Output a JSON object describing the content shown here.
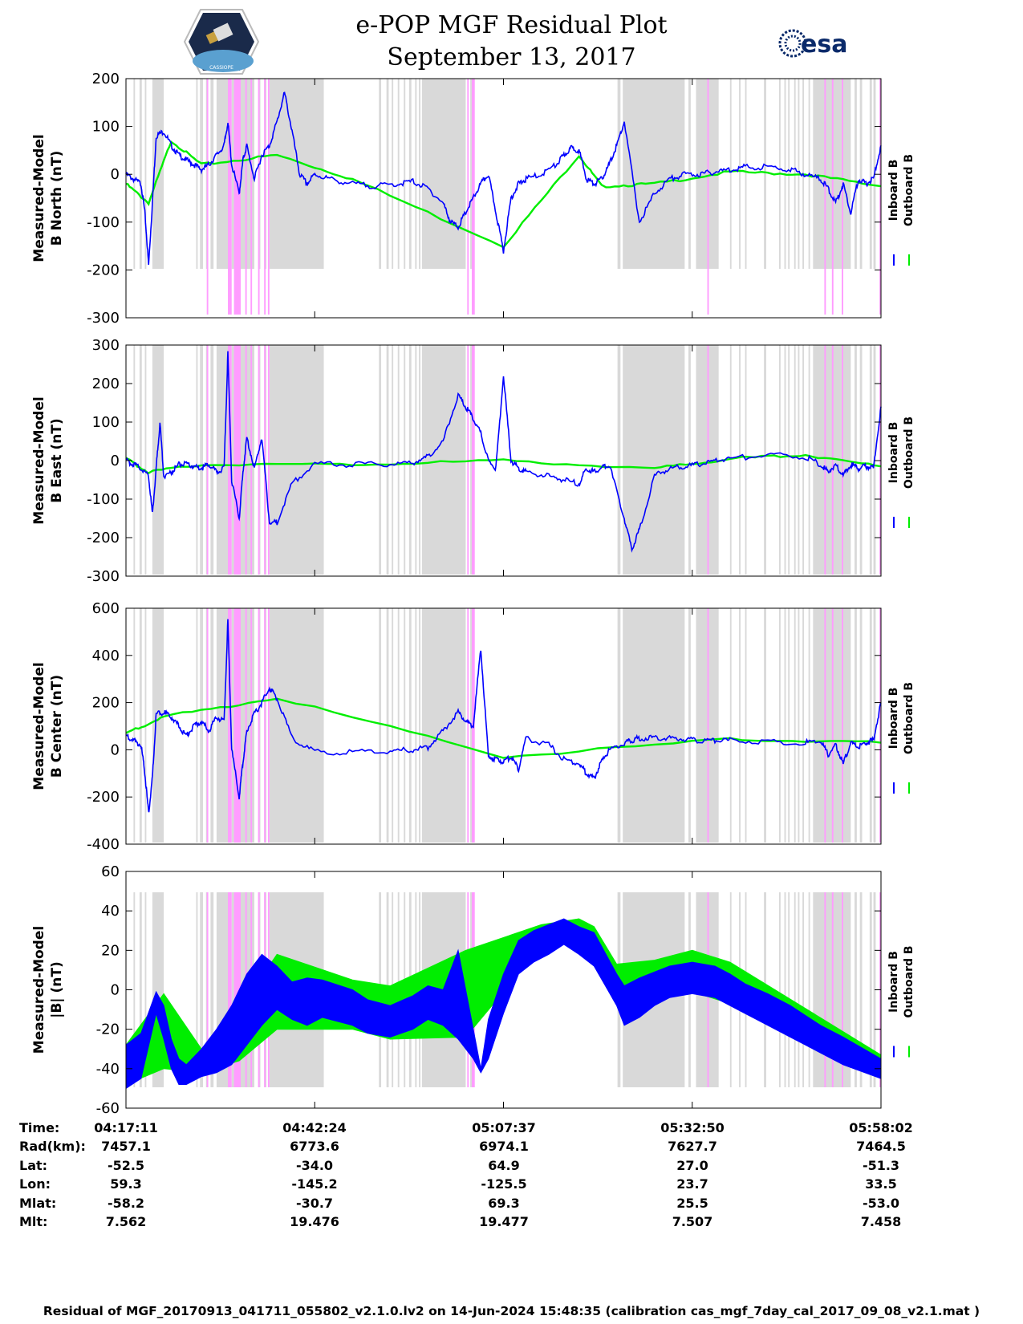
{
  "header": {
    "title_line1": "e-POP MGF Residual Plot",
    "title_line2": "September 13, 2017",
    "logo_left_text": "CASSIOPE",
    "logo_right_text": "esa"
  },
  "colors": {
    "inboard": "#0000ff",
    "outboard": "#00ee00",
    "gray_band": "#d9d9d9",
    "pink_band": "#ff9cff"
  },
  "legend": {
    "inboard": "Inboard B",
    "outboard": "Outboard B"
  },
  "chart_data": [
    {
      "type": "line",
      "ylabel": [
        "Measured-Model",
        "B North (nT)"
      ],
      "ylim": [
        -300,
        200
      ],
      "yticks": [
        200,
        100,
        0,
        -100,
        -200,
        -300
      ],
      "series": [
        {
          "name": "Inboard B",
          "x": [
            0,
            0.01,
            0.02,
            0.025,
            0.03,
            0.035,
            0.04,
            0.05,
            0.06,
            0.07,
            0.08,
            0.09,
            0.1,
            0.11,
            0.12,
            0.13,
            0.135,
            0.14,
            0.15,
            0.155,
            0.16,
            0.17,
            0.18,
            0.19,
            0.2,
            0.21,
            0.22,
            0.23,
            0.24,
            0.25,
            0.27,
            0.3,
            0.33,
            0.36,
            0.38,
            0.4,
            0.42,
            0.43,
            0.44,
            0.45,
            0.46,
            0.47,
            0.48,
            0.49,
            0.5,
            0.51,
            0.52,
            0.53,
            0.55,
            0.57,
            0.58,
            0.59,
            0.6,
            0.61,
            0.62,
            0.63,
            0.64,
            0.65,
            0.66,
            0.68,
            0.7,
            0.72,
            0.74,
            0.76,
            0.78,
            0.8,
            0.82,
            0.85,
            0.88,
            0.9,
            0.92,
            0.93,
            0.94,
            0.95,
            0.96,
            0.97,
            0.98,
            0.99,
            1.0
          ],
          "values": [
            0,
            -10,
            -20,
            -80,
            -190,
            -60,
            80,
            90,
            60,
            40,
            30,
            20,
            10,
            20,
            40,
            60,
            110,
            20,
            -40,
            30,
            60,
            -10,
            40,
            60,
            110,
            170,
            90,
            0,
            -20,
            0,
            -10,
            -20,
            -25,
            -20,
            -15,
            -30,
            -60,
            -100,
            -110,
            -80,
            -50,
            -20,
            0,
            -80,
            -160,
            -50,
            -20,
            -10,
            0,
            20,
            40,
            55,
            50,
            -10,
            -20,
            -10,
            20,
            60,
            110,
            -100,
            -40,
            -10,
            0,
            0,
            5,
            10,
            15,
            15,
            10,
            0,
            -10,
            -30,
            -60,
            -20,
            -80,
            -10,
            -20,
            -10,
            60
          ]
        },
        {
          "name": "Outboard B",
          "x": [
            0,
            0.03,
            0.06,
            0.1,
            0.2,
            0.3,
            0.5,
            0.6,
            0.63,
            0.7,
            0.8,
            0.9,
            1.0
          ],
          "values": [
            -20,
            -60,
            70,
            20,
            40,
            -10,
            -150,
            40,
            -25,
            -20,
            5,
            0,
            -25
          ]
        }
      ]
    },
    {
      "type": "line",
      "ylabel": [
        "Measured-Model",
        "B East (nT)"
      ],
      "ylim": [
        -300,
        300
      ],
      "yticks": [
        300,
        200,
        100,
        0,
        -100,
        -200,
        -300
      ],
      "series": [
        {
          "name": "Inboard B",
          "x": [
            0,
            0.01,
            0.02,
            0.03,
            0.035,
            0.04,
            0.045,
            0.05,
            0.06,
            0.07,
            0.08,
            0.09,
            0.1,
            0.11,
            0.12,
            0.13,
            0.135,
            0.14,
            0.15,
            0.155,
            0.16,
            0.17,
            0.18,
            0.19,
            0.2,
            0.22,
            0.25,
            0.3,
            0.35,
            0.38,
            0.4,
            0.42,
            0.44,
            0.45,
            0.46,
            0.47,
            0.48,
            0.49,
            0.5,
            0.51,
            0.52,
            0.53,
            0.56,
            0.58,
            0.6,
            0.61,
            0.62,
            0.63,
            0.64,
            0.66,
            0.67,
            0.68,
            0.7,
            0.72,
            0.74,
            0.76,
            0.78,
            0.8,
            0.85,
            0.9,
            0.92,
            0.93,
            0.94,
            0.95,
            0.96,
            0.97,
            0.98,
            0.99,
            1.0
          ],
          "values": [
            0,
            -10,
            -20,
            -40,
            -140,
            -20,
            100,
            -40,
            -30,
            -10,
            -10,
            -15,
            -20,
            -10,
            -30,
            -20,
            280,
            -50,
            -150,
            -30,
            60,
            -20,
            60,
            -160,
            -160,
            -60,
            -10,
            -10,
            -10,
            -5,
            10,
            50,
            170,
            140,
            110,
            70,
            0,
            -20,
            220,
            0,
            -20,
            -30,
            -40,
            -50,
            -60,
            -20,
            -30,
            -20,
            -10,
            -150,
            -230,
            -180,
            -40,
            -20,
            -15,
            -10,
            0,
            5,
            15,
            10,
            -10,
            -30,
            -10,
            -40,
            -10,
            -20,
            -15,
            -20,
            140
          ]
        },
        {
          "name": "Outboard B",
          "x": [
            0,
            0.03,
            0.1,
            0.3,
            0.5,
            0.7,
            0.8,
            0.9,
            1.0
          ],
          "values": [
            5,
            -30,
            -10,
            -10,
            0,
            -20,
            5,
            15,
            -15
          ]
        }
      ]
    },
    {
      "type": "line",
      "ylabel": [
        "Measured-Model",
        "B Center (nT)"
      ],
      "ylim": [
        -400,
        600
      ],
      "yticks": [
        600,
        400,
        200,
        0,
        -200,
        -400
      ],
      "series": [
        {
          "name": "Inboard B",
          "x": [
            0,
            0.01,
            0.02,
            0.025,
            0.03,
            0.035,
            0.04,
            0.05,
            0.06,
            0.07,
            0.08,
            0.09,
            0.1,
            0.11,
            0.12,
            0.13,
            0.135,
            0.14,
            0.15,
            0.155,
            0.16,
            0.17,
            0.18,
            0.19,
            0.2,
            0.22,
            0.25,
            0.3,
            0.35,
            0.38,
            0.4,
            0.42,
            0.44,
            0.45,
            0.46,
            0.47,
            0.48,
            0.49,
            0.5,
            0.51,
            0.52,
            0.53,
            0.56,
            0.58,
            0.6,
            0.61,
            0.62,
            0.63,
            0.64,
            0.66,
            0.67,
            0.68,
            0.7,
            0.72,
            0.74,
            0.76,
            0.78,
            0.8,
            0.85,
            0.9,
            0.92,
            0.93,
            0.94,
            0.95,
            0.96,
            0.97,
            0.98,
            0.99,
            1.0
          ],
          "values": [
            60,
            40,
            20,
            -100,
            -270,
            -120,
            150,
            160,
            140,
            100,
            60,
            100,
            120,
            80,
            140,
            120,
            550,
            0,
            -200,
            -50,
            80,
            150,
            200,
            260,
            220,
            50,
            -10,
            -10,
            -5,
            0,
            10,
            80,
            160,
            120,
            100,
            430,
            -30,
            -40,
            -50,
            -30,
            -80,
            50,
            20,
            -40,
            -60,
            -100,
            -120,
            -50,
            0,
            30,
            40,
            50,
            50,
            50,
            45,
            40,
            40,
            40,
            35,
            30,
            40,
            -20,
            20,
            -60,
            30,
            10,
            30,
            40,
            200
          ]
        },
        {
          "name": "Outboard B",
          "x": [
            0,
            0.05,
            0.2,
            0.5,
            0.8,
            1.0
          ],
          "values": [
            70,
            140,
            220,
            -30,
            45,
            30
          ]
        }
      ]
    },
    {
      "type": "area",
      "ylabel": [
        "Measured-Model",
        "|B| (nT)"
      ],
      "ylim": [
        -60,
        60
      ],
      "yticks": [
        60,
        40,
        20,
        0,
        -20,
        -40,
        -60
      ],
      "series": [
        {
          "name": "Inboard B",
          "x": [
            0,
            0.02,
            0.04,
            0.05,
            0.06,
            0.07,
            0.08,
            0.1,
            0.12,
            0.14,
            0.16,
            0.18,
            0.2,
            0.22,
            0.24,
            0.26,
            0.3,
            0.32,
            0.35,
            0.38,
            0.4,
            0.42,
            0.44,
            0.46,
            0.47,
            0.48,
            0.5,
            0.52,
            0.54,
            0.56,
            0.58,
            0.6,
            0.62,
            0.65,
            0.66,
            0.68,
            0.7,
            0.72,
            0.75,
            0.78,
            0.8,
            0.82,
            0.85,
            0.88,
            0.9,
            0.92,
            0.95,
            1.0
          ],
          "upper": [
            -28,
            -22,
            -1,
            -8,
            -25,
            -35,
            -38,
            -30,
            -20,
            -8,
            8,
            18,
            12,
            4,
            6,
            5,
            0,
            -5,
            -8,
            -3,
            2,
            0,
            20,
            -20,
            -40,
            -15,
            8,
            25,
            30,
            33,
            36,
            32,
            29,
            8,
            2,
            6,
            9,
            12,
            14,
            12,
            8,
            3,
            -2,
            -8,
            -13,
            -18,
            -24,
            -35
          ],
          "lower": [
            -50,
            -45,
            -12,
            -25,
            -40,
            -48,
            -48,
            -44,
            -42,
            -38,
            -28,
            -18,
            -10,
            -15,
            -18,
            -14,
            -18,
            -22,
            -24,
            -20,
            -15,
            -18,
            -25,
            -35,
            -42,
            -35,
            -12,
            8,
            14,
            18,
            23,
            18,
            12,
            -8,
            -18,
            -14,
            -8,
            -4,
            -2,
            -4,
            -8,
            -12,
            -18,
            -24,
            -28,
            -32,
            -38,
            -45
          ]
        },
        {
          "name": "Outboard B",
          "x": [
            0,
            0.05,
            0.1,
            0.15,
            0.2,
            0.3,
            0.35,
            0.45,
            0.55,
            0.6,
            0.62,
            0.65,
            0.7,
            0.75,
            0.8,
            1.0
          ],
          "upper": [
            -28,
            -2,
            -30,
            -10,
            18,
            5,
            2,
            20,
            33,
            36,
            32,
            13,
            15,
            20,
            14,
            -33
          ],
          "lower": [
            -48,
            -40,
            -42,
            -36,
            -20,
            -20,
            -25,
            -24,
            22,
            25,
            22,
            -2,
            -4,
            -1,
            -7,
            -44
          ]
        }
      ]
    }
  ],
  "bands": {
    "gray": [
      [
        0.01,
        0.012
      ],
      [
        0.018,
        0.021
      ],
      [
        0.025,
        0.027
      ],
      [
        0.035,
        0.05
      ],
      [
        0.093,
        0.095
      ],
      [
        0.098,
        0.102
      ],
      [
        0.106,
        0.108
      ],
      [
        0.112,
        0.116
      ],
      [
        0.12,
        0.135
      ],
      [
        0.14,
        0.17
      ],
      [
        0.175,
        0.178
      ],
      [
        0.183,
        0.186
      ],
      [
        0.19,
        0.262
      ],
      [
        0.335,
        0.338
      ],
      [
        0.345,
        0.348
      ],
      [
        0.352,
        0.354
      ],
      [
        0.36,
        0.362
      ],
      [
        0.368,
        0.37
      ],
      [
        0.375,
        0.378
      ],
      [
        0.383,
        0.385
      ],
      [
        0.388,
        0.39
      ],
      [
        0.392,
        0.45
      ],
      [
        0.456,
        0.458
      ],
      [
        0.651,
        0.655
      ],
      [
        0.658,
        0.74
      ],
      [
        0.745,
        0.748
      ],
      [
        0.755,
        0.785
      ],
      [
        0.8,
        0.802
      ],
      [
        0.812,
        0.814
      ],
      [
        0.82,
        0.822
      ],
      [
        0.845,
        0.848
      ],
      [
        0.865,
        0.867
      ],
      [
        0.872,
        0.874
      ],
      [
        0.877,
        0.879
      ],
      [
        0.885,
        0.887
      ],
      [
        0.89,
        0.892
      ],
      [
        0.896,
        0.898
      ],
      [
        0.904,
        0.906
      ],
      [
        0.91,
        0.96
      ],
      [
        0.965,
        0.968
      ],
      [
        0.972,
        0.975
      ],
      [
        0.985,
        0.988
      ],
      [
        0.99,
        0.993
      ]
    ],
    "pink": [
      [
        0.107,
        0.109
      ],
      [
        0.135,
        0.14
      ],
      [
        0.143,
        0.152
      ],
      [
        0.158,
        0.16
      ],
      [
        0.165,
        0.167
      ],
      [
        0.175,
        0.177
      ],
      [
        0.183,
        0.185
      ],
      [
        0.188,
        0.19
      ],
      [
        0.452,
        0.454
      ],
      [
        0.458,
        0.462
      ],
      [
        0.77,
        0.772
      ],
      [
        0.925,
        0.927
      ],
      [
        0.935,
        0.937
      ],
      [
        0.948,
        0.95
      ],
      [
        0.998,
        1.0
      ]
    ]
  },
  "time_axis": {
    "labels": [
      {
        "row": "Time:",
        "values": [
          "04:17:11",
          "04:42:24",
          "05:07:37",
          "05:32:50",
          "05:58:02"
        ]
      },
      {
        "row": "Rad(km):",
        "values": [
          "7457.1",
          "6773.6",
          "6974.1",
          "7627.7",
          "7464.5"
        ]
      },
      {
        "row": "Lat:",
        "values": [
          "-52.5",
          "-34.0",
          "64.9",
          "27.0",
          "-51.3"
        ]
      },
      {
        "row": "Lon:",
        "values": [
          "59.3",
          "-145.2",
          "-125.5",
          "23.7",
          "33.5"
        ]
      },
      {
        "row": "Mlat:",
        "values": [
          "-58.2",
          "-30.7",
          "69.3",
          "25.5",
          "-53.0"
        ]
      },
      {
        "row": "Mlt:",
        "values": [
          "7.562",
          "19.476",
          "19.477",
          "7.507",
          "7.458"
        ]
      }
    ]
  },
  "footer": "Residual of MGF_20170913_041711_055802_v2.1.0.lv2 on 14-Jun-2024 15:48:35 (calibration cas_mgf_7day_cal_2017_09_08_v2.1.mat )"
}
